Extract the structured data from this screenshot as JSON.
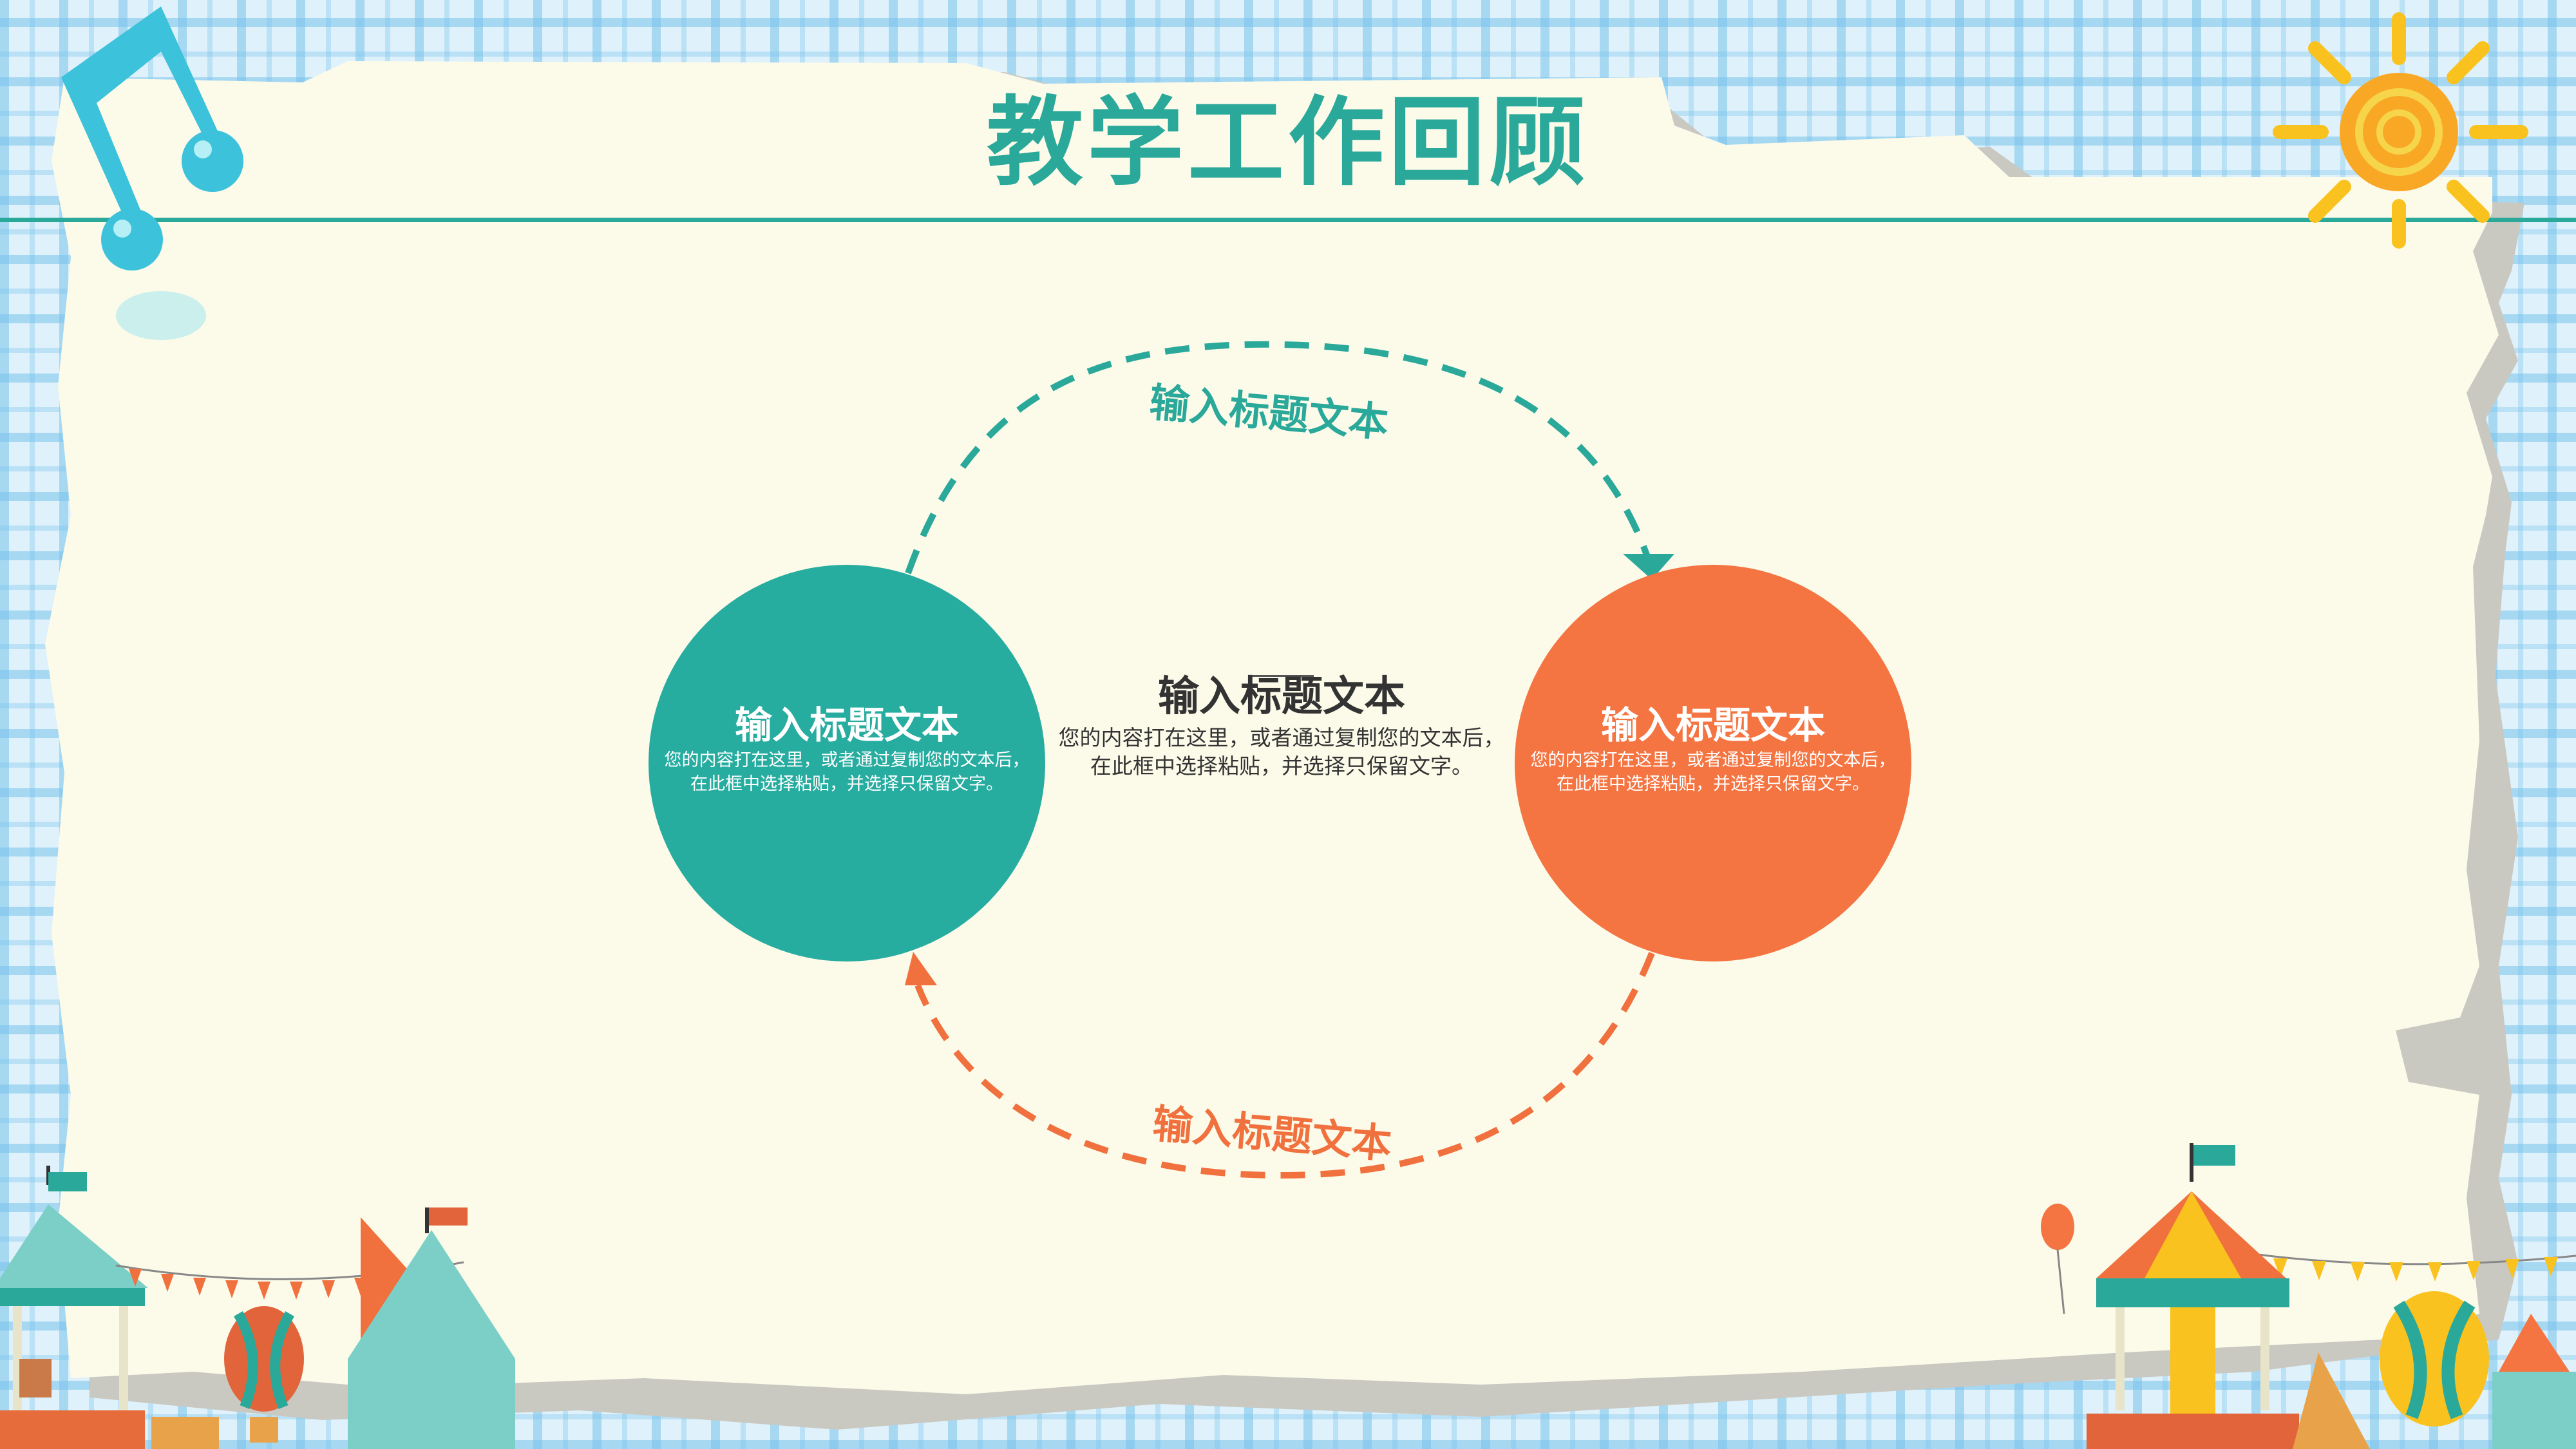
{
  "slide": {
    "title": "教学工作回顾",
    "top_arc_label": "输入标题文本",
    "bottom_arc_label": "输入标题文本",
    "left_circle": {
      "title": "输入标题文本",
      "body_line1": "您的内容打在这里，或者通过复制您的文本后，",
      "body_line2": "在此框中选择粘贴，并选择只保留文字。",
      "color": "#27aca0"
    },
    "center": {
      "title": "输入标题文本",
      "body_line1": "您的内容打在这里，或者通过复制您的文本后，",
      "body_line2": "在此框中选择粘贴，并选择只保留文字。"
    },
    "right_circle": {
      "title": "输入标题文本",
      "body_line1": "您的内容打在这里，或者通过复制您的文本后，",
      "body_line2": "在此框中选择粘贴，并选择只保留文字。",
      "color": "#f47442"
    }
  },
  "colors": {
    "teal": "#2aa89a",
    "orange": "#f0713e",
    "paper": "#fcfbea",
    "plaid": "#dff1fb"
  },
  "decorations": [
    "music-note-icon",
    "sun-icon",
    "carousel-left-icon",
    "carousel-right-icon",
    "balloon-icon",
    "bunting-flags"
  ]
}
